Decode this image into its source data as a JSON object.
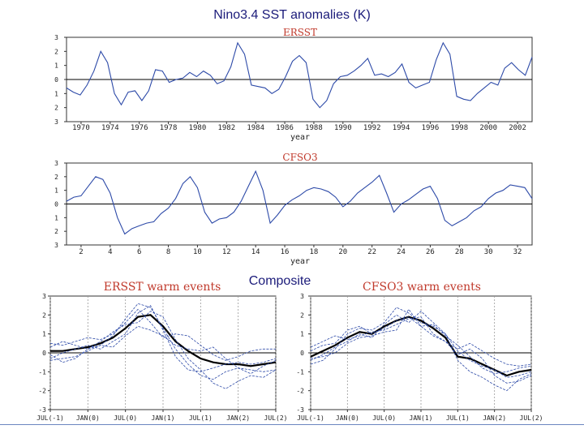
{
  "slide": {
    "title": "Nino3.4 SST anomalies (K)",
    "composite_label": "Composite"
  },
  "colors": {
    "line": "#2d4aa8",
    "composite": "#000000",
    "frame_title": "#c0392b",
    "axis_text": "#222222"
  },
  "chart_data": [
    {
      "type": "line",
      "title": "ERSST",
      "xlabel": "year",
      "ylabel": "",
      "x_tick_labels": [
        "1970",
        "1974",
        "1976",
        "1978",
        "1980",
        "1982",
        "1984",
        "1986",
        "1988",
        "1990",
        "1992",
        "1994",
        "1996",
        "1998",
        "2000",
        "2002"
      ],
      "y_tick_labels": [
        "3",
        "2",
        "1",
        "0",
        "1",
        "2",
        "3"
      ],
      "ylim": [
        -3,
        3
      ],
      "xlim": [
        1970,
        2004
      ],
      "zero_line": true,
      "grid": false,
      "series": [
        {
          "x": [
            1970,
            1970.5,
            1971,
            1971.5,
            1972,
            1972.5,
            1973,
            1973.5,
            1974,
            1974.5,
            1975,
            1975.5,
            1976,
            1976.5,
            1977,
            1977.5,
            1978,
            1978.5,
            1979,
            1979.5,
            1980,
            1980.5,
            1981,
            1981.5,
            1982,
            1982.5,
            1983,
            1983.5,
            1984,
            1984.5,
            1985,
            1985.5,
            1986,
            1986.5,
            1987,
            1987.5,
            1988,
            1988.5,
            1989,
            1989.5,
            1990,
            1990.5,
            1991,
            1991.5,
            1992,
            1992.5,
            1993,
            1993.5,
            1994,
            1994.5,
            1995,
            1995.5,
            1996,
            1996.5,
            1997,
            1997.5,
            1998,
            1998.5,
            1999,
            1999.5,
            2000,
            2000.5,
            2001,
            2001.5,
            2002,
            2002.5,
            2003,
            2003.5,
            2004
          ],
          "values": [
            -0.6,
            -0.9,
            -1.1,
            -0.4,
            0.6,
            2.0,
            1.2,
            -1.0,
            -1.8,
            -0.9,
            -0.8,
            -1.5,
            -0.8,
            0.7,
            0.6,
            -0.2,
            0.0,
            0.1,
            0.5,
            0.2,
            0.6,
            0.3,
            -0.3,
            -0.1,
            0.9,
            2.6,
            1.8,
            -0.4,
            -0.5,
            -0.6,
            -1.0,
            -0.7,
            0.2,
            1.3,
            1.7,
            1.2,
            -1.4,
            -2.0,
            -1.5,
            -0.3,
            0.2,
            0.3,
            0.6,
            1.0,
            1.5,
            0.3,
            0.4,
            0.2,
            0.5,
            1.1,
            -0.2,
            -0.6,
            -0.4,
            -0.2,
            1.4,
            2.6,
            1.8,
            -1.2,
            -1.4,
            -1.5,
            -1.0,
            -0.6,
            -0.2,
            -0.4,
            0.8,
            1.2,
            0.7,
            0.3,
            1.6
          ]
        }
      ]
    },
    {
      "type": "line",
      "title": "CFSO3",
      "xlabel": "year",
      "ylabel": "",
      "x_tick_labels": [
        "2",
        "4",
        "6",
        "8",
        "10",
        "12",
        "14",
        "16",
        "18",
        "20",
        "22",
        "24",
        "26",
        "28",
        "30",
        "32"
      ],
      "y_tick_labels": [
        "3",
        "2",
        "1",
        "0",
        "1",
        "2",
        "3"
      ],
      "ylim": [
        -3,
        3
      ],
      "xlim": [
        1,
        33
      ],
      "zero_line": true,
      "grid": false,
      "series": [
        {
          "x": [
            1,
            1.5,
            2,
            2.5,
            3,
            3.5,
            4,
            4.5,
            5,
            5.5,
            6,
            6.5,
            7,
            7.5,
            8,
            8.5,
            9,
            9.5,
            10,
            10.5,
            11,
            11.5,
            12,
            12.5,
            13,
            13.5,
            14,
            14.5,
            15,
            15.5,
            16,
            16.5,
            17,
            17.5,
            18,
            18.5,
            19,
            19.5,
            20,
            20.5,
            21,
            21.5,
            22,
            22.5,
            23,
            23.5,
            24,
            24.5,
            25,
            25.5,
            26,
            26.5,
            27,
            27.5,
            28,
            28.5,
            29,
            29.5,
            30,
            30.5,
            31,
            31.5,
            32,
            32.5,
            33
          ],
          "values": [
            0.2,
            0.5,
            0.6,
            1.3,
            2.0,
            1.8,
            0.8,
            -1.0,
            -2.2,
            -1.8,
            -1.6,
            -1.4,
            -1.3,
            -0.7,
            -0.3,
            0.4,
            1.5,
            2.0,
            1.2,
            -0.6,
            -1.4,
            -1.1,
            -1.0,
            -0.6,
            0.2,
            1.3,
            2.4,
            1.0,
            -1.4,
            -0.8,
            -0.1,
            0.3,
            0.6,
            1.0,
            1.2,
            1.1,
            0.9,
            0.5,
            -0.2,
            0.2,
            0.8,
            1.2,
            1.6,
            2.1,
            0.8,
            -0.6,
            0.0,
            0.3,
            0.7,
            1.1,
            1.3,
            0.4,
            -1.2,
            -1.6,
            -1.3,
            -1.0,
            -0.5,
            -0.2,
            0.4,
            0.8,
            1.0,
            1.4,
            1.3,
            1.2,
            0.4
          ]
        }
      ]
    },
    {
      "type": "line",
      "title": "ERSST warm events",
      "xlabel": "",
      "ylabel": "",
      "x_tick_labels": [
        "JUL(-1)",
        "JAN(0)",
        "JUL(0)",
        "JAN(1)",
        "JUL(1)",
        "JAN(2)",
        "JUL(2)"
      ],
      "y_tick_labels": [
        "3",
        "2",
        "1",
        "0",
        "-1",
        "-2",
        "-3"
      ],
      "ylim": [
        -3,
        3
      ],
      "xlim": [
        0,
        36
      ],
      "zero_line": true,
      "grid": true,
      "series": [
        {
          "name": "composite",
          "role": "composite",
          "x": [
            0,
            2,
            4,
            6,
            8,
            10,
            12,
            14,
            16,
            18,
            20,
            22,
            24,
            26,
            28,
            30,
            32,
            34,
            36
          ],
          "values": [
            0.1,
            0.1,
            0.2,
            0.3,
            0.5,
            0.8,
            1.3,
            1.9,
            2.0,
            1.4,
            0.6,
            0.1,
            -0.3,
            -0.5,
            -0.6,
            -0.6,
            -0.7,
            -0.6,
            -0.5
          ]
        },
        {
          "x": [
            0,
            2,
            4,
            6,
            8,
            10,
            12,
            14,
            16,
            18,
            20,
            22,
            24,
            26,
            28,
            30,
            32,
            34,
            36
          ],
          "values": [
            -0.4,
            -0.3,
            -0.2,
            0.1,
            0.4,
            0.9,
            1.8,
            2.6,
            2.4,
            1.3,
            0.2,
            -0.6,
            -1.2,
            -1.4,
            -1.0,
            -0.8,
            -1.1,
            -0.7,
            -0.4
          ]
        },
        {
          "x": [
            0,
            2,
            4,
            6,
            8,
            10,
            12,
            14,
            16,
            18,
            20,
            22,
            24,
            26,
            28,
            30,
            32,
            34,
            36
          ],
          "values": [
            0.5,
            0.4,
            0.6,
            0.8,
            0.7,
            1.0,
            1.6,
            2.3,
            1.6,
            0.8,
            1.0,
            0.9,
            0.4,
            -0.1,
            -0.4,
            -0.2,
            0.1,
            0.2,
            0.2
          ]
        },
        {
          "x": [
            0,
            2,
            4,
            6,
            8,
            10,
            12,
            14,
            16,
            18,
            20,
            22,
            24,
            26,
            28,
            30,
            32,
            34,
            36
          ],
          "values": [
            -0.1,
            -0.5,
            -0.3,
            0.2,
            0.6,
            1.1,
            1.5,
            1.6,
            2.2,
            1.9,
            0.7,
            -0.3,
            -0.9,
            -1.6,
            -1.9,
            -1.5,
            -1.2,
            -1.3,
            -0.9
          ]
        },
        {
          "x": [
            0,
            2,
            4,
            6,
            8,
            10,
            12,
            14,
            16,
            18,
            20,
            22,
            24,
            26,
            28,
            30,
            32,
            34,
            36
          ],
          "values": [
            0.3,
            0.6,
            0.4,
            0.2,
            0.4,
            0.3,
            0.9,
            1.4,
            1.2,
            0.9,
            0.4,
            0.2,
            0.1,
            0.3,
            -0.3,
            -0.8,
            -0.9,
            -1.0,
            -0.9
          ]
        },
        {
          "x": [
            0,
            2,
            4,
            6,
            8,
            10,
            12,
            14,
            16,
            18,
            20,
            22,
            24,
            26,
            28,
            30,
            32,
            34,
            36
          ],
          "values": [
            -0.3,
            0.0,
            0.2,
            0.4,
            0.2,
            0.6,
            1.0,
            2.1,
            2.5,
            1.2,
            -0.2,
            -0.9,
            -1.0,
            -0.8,
            -0.6,
            -0.5,
            -0.6,
            -0.5,
            -0.3
          ]
        }
      ]
    },
    {
      "type": "line",
      "title": "CFSO3 warm events",
      "xlabel": "",
      "ylabel": "",
      "x_tick_labels": [
        "JUL(-1)",
        "JAN(0)",
        "JUL(0)",
        "JAN(1)",
        "JUL(1)",
        "JAN(2)",
        "JUL(2)"
      ],
      "y_tick_labels": [
        "3",
        "2",
        "1",
        "0",
        "-1",
        "-2",
        "-3"
      ],
      "ylim": [
        -3,
        3
      ],
      "xlim": [
        0,
        36
      ],
      "zero_line": true,
      "grid": true,
      "series": [
        {
          "name": "composite",
          "role": "composite",
          "x": [
            0,
            2,
            4,
            6,
            8,
            10,
            12,
            14,
            16,
            18,
            20,
            22,
            24,
            26,
            28,
            30,
            32,
            34,
            36
          ],
          "values": [
            -0.2,
            0.1,
            0.4,
            0.8,
            1.1,
            1.0,
            1.4,
            1.7,
            1.9,
            1.7,
            1.3,
            0.8,
            -0.2,
            -0.3,
            -0.6,
            -0.9,
            -1.2,
            -1.0,
            -0.9
          ]
        },
        {
          "x": [
            0,
            2,
            4,
            6,
            8,
            10,
            12,
            14,
            16,
            18,
            20,
            22,
            24,
            26,
            28,
            30,
            32,
            34,
            36
          ],
          "values": [
            -0.6,
            -0.4,
            0.2,
            1.0,
            1.3,
            1.2,
            1.6,
            2.4,
            2.1,
            1.6,
            1.4,
            1.0,
            -0.4,
            -1.0,
            -1.3,
            -1.7,
            -2.0,
            -1.4,
            -1.1
          ]
        },
        {
          "x": [
            0,
            2,
            4,
            6,
            8,
            10,
            12,
            14,
            16,
            18,
            20,
            22,
            24,
            26,
            28,
            30,
            32,
            34,
            36
          ],
          "values": [
            0.3,
            0.6,
            0.9,
            0.7,
            0.9,
            1.1,
            1.2,
            1.5,
            1.8,
            1.9,
            1.0,
            0.6,
            0.2,
            0.5,
            0.1,
            -0.3,
            -0.6,
            -0.7,
            -0.6
          ]
        },
        {
          "x": [
            0,
            2,
            4,
            6,
            8,
            10,
            12,
            14,
            16,
            18,
            20,
            22,
            24,
            26,
            28,
            30,
            32,
            34,
            36
          ],
          "values": [
            -0.3,
            -0.2,
            0.0,
            0.5,
            0.8,
            0.9,
            1.1,
            1.2,
            2.3,
            1.4,
            1.5,
            0.9,
            0.4,
            -0.2,
            -0.8,
            -1.1,
            -1.0,
            -0.8,
            -0.7
          ]
        },
        {
          "x": [
            0,
            2,
            4,
            6,
            8,
            10,
            12,
            14,
            16,
            18,
            20,
            22,
            24,
            26,
            28,
            30,
            32,
            34,
            36
          ],
          "values": [
            0.1,
            0.4,
            0.5,
            1.2,
            1.4,
            1.0,
            1.3,
            1.7,
            1.9,
            1.4,
            0.9,
            0.6,
            -0.1,
            0.2,
            -0.3,
            -1.2,
            -1.6,
            -1.5,
            -1.2
          ]
        },
        {
          "x": [
            0,
            2,
            4,
            6,
            8,
            10,
            12,
            14,
            16,
            18,
            20,
            22,
            24,
            26,
            28,
            30,
            32,
            34,
            36
          ],
          "values": [
            -0.4,
            -0.1,
            0.3,
            0.6,
            1.0,
            0.8,
            1.5,
            2.0,
            1.6,
            2.2,
            1.6,
            1.0,
            0.1,
            -0.4,
            -0.7,
            -0.9,
            -1.3,
            -1.2,
            -1.0
          ]
        }
      ]
    }
  ]
}
